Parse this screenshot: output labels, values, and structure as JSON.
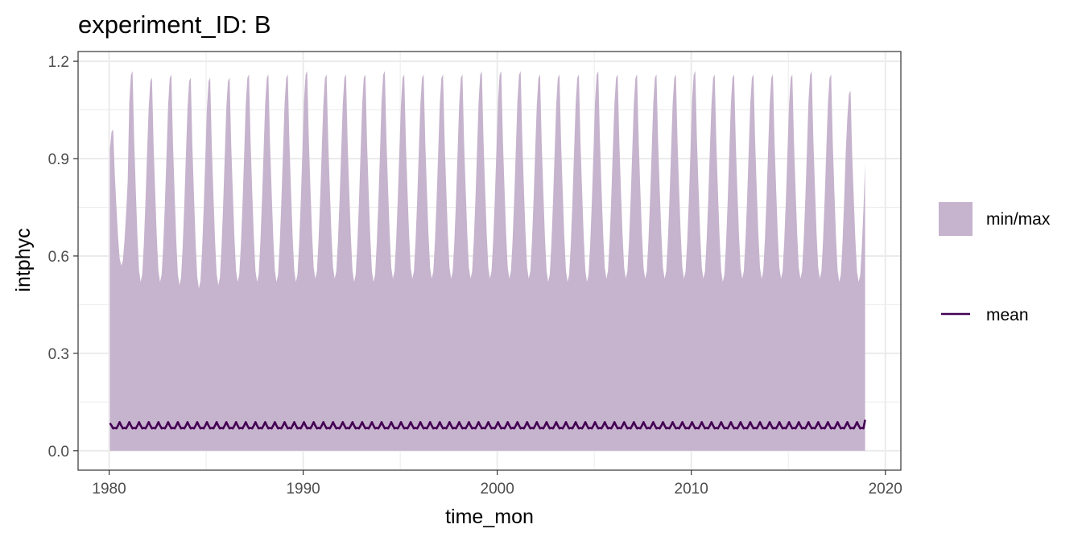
{
  "chart_data": {
    "type": "area",
    "title": "experiment_ID: B",
    "xlabel": "time_mon",
    "ylabel": "intphyc",
    "xlim": [
      1978.4,
      2020.8
    ],
    "ylim": [
      -0.06,
      1.23
    ],
    "x_ticks": [
      1980,
      1990,
      2000,
      2010,
      2020
    ],
    "y_ticks": [
      0.0,
      0.3,
      0.6,
      0.9,
      1.2
    ],
    "y_tick_labels": [
      "0.0",
      "0.3",
      "0.6",
      "0.9",
      "1.2"
    ],
    "grid": true,
    "legend_position": "right",
    "legend": [
      {
        "label": "min/max",
        "kind": "ribbon",
        "color": "#C6B3CD"
      },
      {
        "label": "mean",
        "kind": "line",
        "color": "#440154"
      }
    ],
    "series": [
      {
        "label": "min/max",
        "description": "monthly ribbon; min is 0.0 every month, max follows a seasonal cycle",
        "x_start": 1980.04,
        "months": 468,
        "min": 0.0,
        "annual_max": [
          0.99,
          1.17,
          1.15,
          1.16,
          1.15,
          1.15,
          1.15,
          1.16,
          1.16,
          1.16,
          1.17,
          1.16,
          1.16,
          1.16,
          1.17,
          1.16,
          1.16,
          1.16,
          1.16,
          1.17,
          1.17,
          1.17,
          1.16,
          1.16,
          1.16,
          1.17,
          1.16,
          1.16,
          1.16,
          1.16,
          1.17,
          1.16,
          1.16,
          1.16,
          1.16,
          1.16,
          1.17,
          1.16,
          1.11
        ],
        "annual_trough": [
          0.57,
          0.52,
          0.52,
          0.51,
          0.5,
          0.51,
          0.52,
          0.52,
          0.52,
          0.52,
          0.53,
          0.53,
          0.52,
          0.52,
          0.53,
          0.53,
          0.53,
          0.53,
          0.53,
          0.53,
          0.53,
          0.53,
          0.52,
          0.52,
          0.52,
          0.53,
          0.53,
          0.53,
          0.53,
          0.53,
          0.53,
          0.52,
          0.53,
          0.53,
          0.53,
          0.53,
          0.53,
          0.52,
          0.52
        ]
      },
      {
        "label": "mean",
        "description": "monthly mean with two small peaks per year",
        "x_start": 1980.04,
        "months": 468,
        "baseline": 0.075,
        "amplitude": 0.013,
        "first": 0.085,
        "last": 0.095
      }
    ]
  }
}
